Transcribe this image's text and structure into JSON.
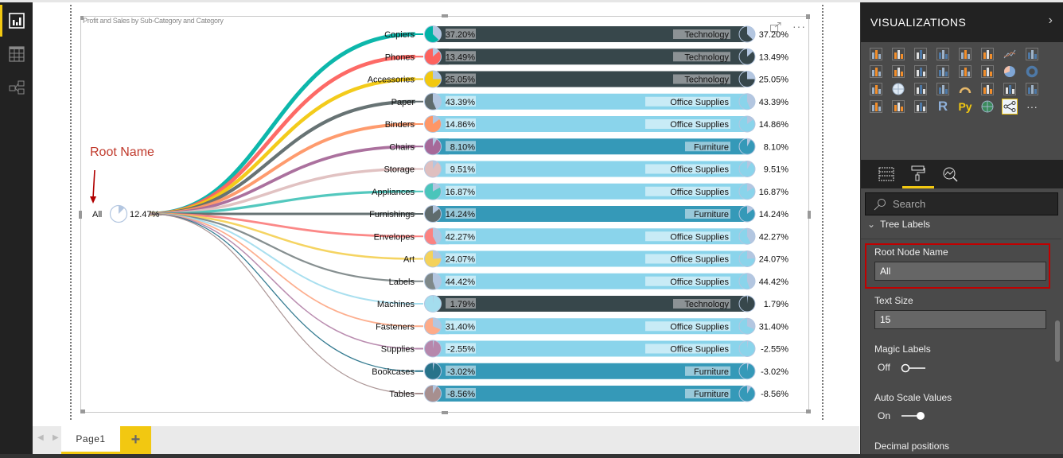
{
  "app": {
    "left_nav": [
      {
        "name": "report-view",
        "icon": "bar-chart-icon",
        "active": true
      },
      {
        "name": "data-view",
        "icon": "table-icon",
        "active": false
      },
      {
        "name": "model-view",
        "icon": "relationships-icon",
        "active": false
      }
    ]
  },
  "visual": {
    "title": "Profit and Sales by Sub-Category and Category",
    "focus_icon": "focus-mode-icon",
    "more_icon": "more-options-icon"
  },
  "annotation": {
    "text": "Root Name",
    "color": "#c0392b"
  },
  "colors": {
    "technology": "#37474b",
    "office_supplies": "#8ad4eb",
    "furniture": "#3599b8",
    "pie_remainder": "#b3c6e0",
    "accent": "#f2c811"
  },
  "chart_data": {
    "type": "tree",
    "title": "Profit and Sales by Sub-Category and Category",
    "root": {
      "name": "All",
      "value_label": "12.47%",
      "value": 12.47
    },
    "nodes": [
      {
        "name": "Copiers",
        "value_label": "37.20%",
        "value": 37.2,
        "category": "Technology",
        "color": "#00b3a6",
        "right_label": "37.20%"
      },
      {
        "name": "Phones",
        "value_label": "13.49%",
        "value": 13.49,
        "category": "Technology",
        "color": "#fd625e",
        "right_label": "13.49%"
      },
      {
        "name": "Accessories",
        "value_label": "25.05%",
        "value": 25.05,
        "category": "Technology",
        "color": "#f2c80f",
        "right_label": "25.05%"
      },
      {
        "name": "Paper",
        "value_label": "43.39%",
        "value": 43.39,
        "category": "Office Supplies",
        "color": "#5f6b6d",
        "right_label": "43.39%"
      },
      {
        "name": "Binders",
        "value_label": "14.86%",
        "value": 14.86,
        "category": "Office Supplies",
        "color": "#fe9666",
        "right_label": "14.86%"
      },
      {
        "name": "Chairs",
        "value_label": "8.10%",
        "value": 8.1,
        "category": "Furniture",
        "color": "#a66999",
        "right_label": "8.10%"
      },
      {
        "name": "Storage",
        "value_label": "9.51%",
        "value": 9.51,
        "category": "Office Supplies",
        "color": "#dfbfbf",
        "right_label": "9.51%"
      },
      {
        "name": "Appliances",
        "value_label": "16.87%",
        "value": 16.87,
        "category": "Office Supplies",
        "color": "#4ac5bb",
        "right_label": "16.87%"
      },
      {
        "name": "Furnishings",
        "value_label": "14.24%",
        "value": 14.24,
        "category": "Furniture",
        "color": "#5f6b6d",
        "right_label": "14.24%"
      },
      {
        "name": "Envelopes",
        "value_label": "42.27%",
        "value": 42.27,
        "category": "Office Supplies",
        "color": "#fb8281",
        "right_label": "42.27%"
      },
      {
        "name": "Art",
        "value_label": "24.07%",
        "value": 24.07,
        "category": "Office Supplies",
        "color": "#f4d25a",
        "right_label": "24.07%"
      },
      {
        "name": "Labels",
        "value_label": "44.42%",
        "value": 44.42,
        "category": "Office Supplies",
        "color": "#7f898a",
        "right_label": "44.42%"
      },
      {
        "name": "Machines",
        "value_label": "1.79%",
        "value": 1.79,
        "category": "Technology",
        "color": "#a4ddee",
        "right_label": "1.79%"
      },
      {
        "name": "Fasteners",
        "value_label": "31.40%",
        "value": 31.4,
        "category": "Office Supplies",
        "color": "#fdab89",
        "right_label": "31.40%"
      },
      {
        "name": "Supplies",
        "value_label": "-2.55%",
        "value": -2.55,
        "category": "Office Supplies",
        "color": "#b687ac",
        "right_label": "-2.55%"
      },
      {
        "name": "Bookcases",
        "value_label": "-3.02%",
        "value": -3.02,
        "category": "Furniture",
        "color": "#28738a",
        "right_label": "-3.02%"
      },
      {
        "name": "Tables",
        "value_label": "-8.56%",
        "value": -8.56,
        "category": "Furniture",
        "color": "#a78f8f",
        "right_label": "-8.56%"
      }
    ]
  },
  "pages": {
    "tabs": [
      {
        "label": "Page1",
        "active": true
      }
    ],
    "add_label": "+"
  },
  "panel": {
    "title": "VISUALIZATIONS",
    "expand_icon": "chevron-right-icon",
    "viz_icons": [
      "stacked-bar",
      "stacked-column",
      "clustered-bar",
      "clustered-column",
      "100-stacked-bar",
      "100-stacked-column",
      "line",
      "area",
      "stacked-area",
      "line-clustered-column",
      "line-stacked-column",
      "ribbon",
      "waterfall",
      "scatter",
      "pie",
      "donut",
      "treemap",
      "map",
      "filled-map",
      "funnel",
      "gauge",
      "card",
      "multi-row-card",
      "kpi",
      "slicer",
      "table",
      "matrix",
      "r-visual",
      "python-visual",
      "globe",
      "tree-visual",
      "more"
    ],
    "r_label": "R",
    "py_label": "Py",
    "more_label": "···",
    "tabs": [
      {
        "name": "fields",
        "icon": "fields-icon",
        "active": false
      },
      {
        "name": "format",
        "icon": "paint-roller-icon",
        "active": true
      },
      {
        "name": "analytics",
        "icon": "analytics-icon",
        "active": false
      }
    ],
    "search_placeholder": "Search",
    "section": "Tree Labels",
    "root_node_name_label": "Root Node Name",
    "root_node_name_value": "All",
    "text_size_label": "Text Size",
    "text_size_value": "15",
    "magic_labels_label": "Magic Labels",
    "magic_labels_state": "Off",
    "auto_scale_label": "Auto Scale Values",
    "auto_scale_state": "On",
    "decimal_label": "Decimal positions"
  }
}
